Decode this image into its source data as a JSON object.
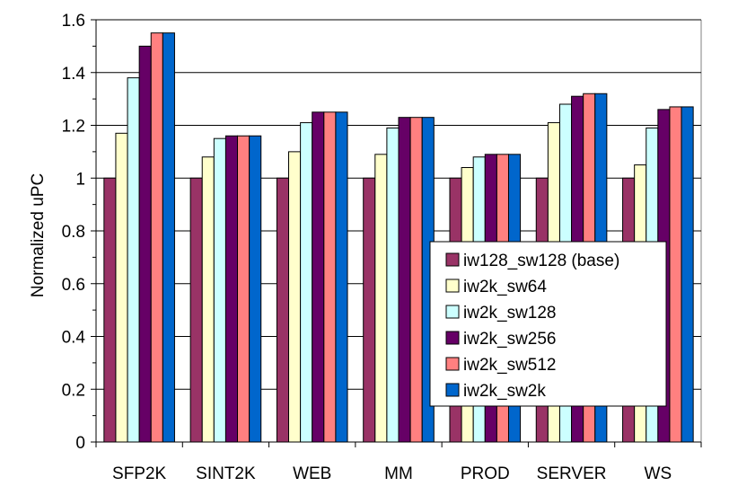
{
  "chart_data": {
    "type": "bar",
    "title": "",
    "xlabel": "",
    "ylabel": "Normalized uPC",
    "ylim": [
      0,
      1.6
    ],
    "ytick_step": 0.2,
    "yticks": [
      "0",
      "0.2",
      "0.4",
      "0.6",
      "0.8",
      "1",
      "1.2",
      "1.4",
      "1.6"
    ],
    "grid": "horizontal major lines",
    "legend_position": "center-right inside plot",
    "categories": [
      "SFP2K",
      "SINT2K",
      "WEB",
      "MM",
      "PROD",
      "SERVER",
      "WS"
    ],
    "series": [
      {
        "name": "iw128_sw128 (base)",
        "color": "#993366",
        "values": [
          1.0,
          1.0,
          1.0,
          1.0,
          1.0,
          1.0,
          1.0
        ]
      },
      {
        "name": "iw2k_sw64",
        "color": "#FFFFCC",
        "values": [
          1.17,
          1.08,
          1.1,
          1.09,
          1.04,
          1.21,
          1.05
        ]
      },
      {
        "name": "iw2k_sw128",
        "color": "#CCFFFF",
        "values": [
          1.38,
          1.15,
          1.21,
          1.19,
          1.08,
          1.28,
          1.19
        ]
      },
      {
        "name": "iw2k_sw256",
        "color": "#660066",
        "values": [
          1.5,
          1.16,
          1.25,
          1.23,
          1.09,
          1.31,
          1.26
        ]
      },
      {
        "name": "iw2k_sw512",
        "color": "#FF8080",
        "values": [
          1.55,
          1.16,
          1.25,
          1.23,
          1.09,
          1.32,
          1.27
        ]
      },
      {
        "name": "iw2k_sw2k",
        "color": "#0066CC",
        "values": [
          1.55,
          1.16,
          1.25,
          1.23,
          1.09,
          1.32,
          1.27
        ]
      }
    ]
  }
}
